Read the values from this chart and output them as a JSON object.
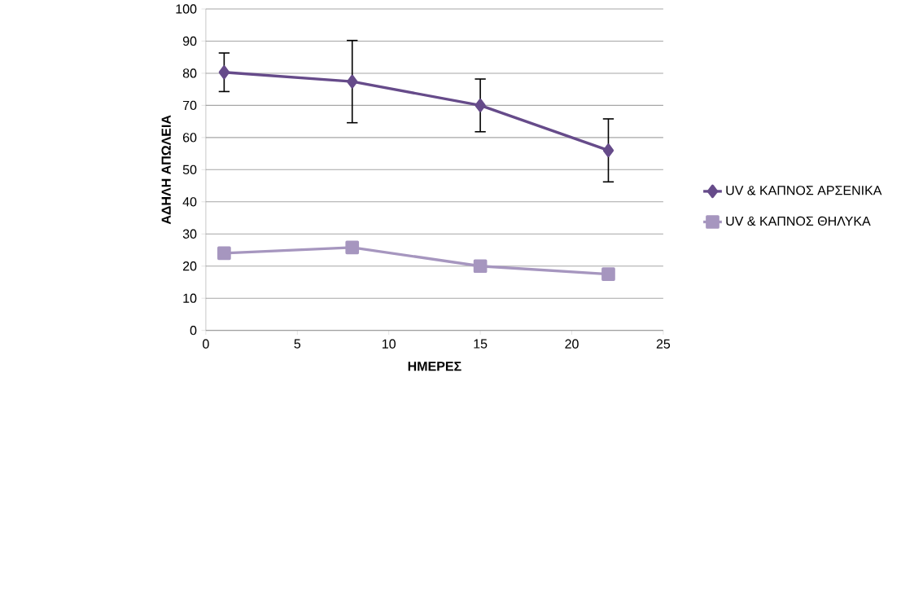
{
  "chart_data": {
    "type": "line",
    "xlabel": "ΗΜΕΡΕΣ",
    "ylabel": "ΑΔΗΛΗ ΑΠΩΛΕΙΑ",
    "x": [
      1,
      8,
      15,
      22
    ],
    "series": [
      {
        "name": "UV & ΚΑΠΝΟΣ ΑΡΣΕΝΙΚΑ",
        "color": "#664b8a",
        "marker": "diamond",
        "values": [
          80.3,
          77.4,
          70,
          56
        ],
        "errors": [
          6,
          12.8,
          8.2,
          9.8
        ]
      },
      {
        "name": "UV & ΚΑΠΝΟΣ ΘΗΛΥΚΑ",
        "color": "#a696bf",
        "marker": "square",
        "values": [
          24,
          25.8,
          20,
          17.5
        ]
      }
    ],
    "xlim": [
      0,
      25
    ],
    "xticks": [
      0,
      5,
      10,
      15,
      20,
      25
    ],
    "ylim": [
      0,
      100
    ],
    "yticks": [
      0,
      10,
      20,
      30,
      40,
      50,
      60,
      70,
      80,
      90,
      100
    ],
    "grid": "y",
    "legend": "right",
    "line_style": "solid"
  }
}
